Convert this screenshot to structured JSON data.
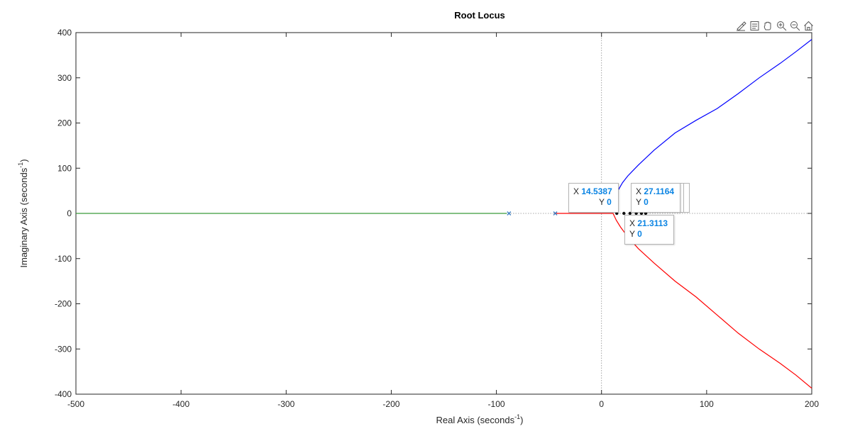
{
  "toolbar": {
    "icons": [
      "brush-icon",
      "datatip-icon",
      "pan-icon",
      "zoom-in-icon",
      "zoom-out-icon",
      "home-icon"
    ]
  },
  "datatips": [
    {
      "x_label": "X",
      "x_value": "14.5387",
      "y_label": "Y",
      "y_value": "0"
    },
    {
      "x_label": "X",
      "x_value": "27.1164",
      "y_label": "Y",
      "y_value": "0"
    },
    {
      "x_label": "X",
      "x_value": "21.3113",
      "y_label": "Y",
      "y_value": "0"
    }
  ],
  "chart_data": {
    "type": "line",
    "title": "Root Locus",
    "xlabel": "Real Axis (seconds",
    "xlabel_sup": "-1",
    "xlabel_close": ")",
    "ylabel": "Imaginary Axis (seconds",
    "ylabel_sup": "-1",
    "ylabel_close": ")",
    "xlim": [
      -500,
      200
    ],
    "ylim": [
      -400,
      400
    ],
    "xticks": [
      -500,
      -400,
      -300,
      -200,
      -100,
      0,
      100,
      200
    ],
    "yticks": [
      -400,
      -300,
      -200,
      -100,
      0,
      100,
      200,
      300,
      400
    ],
    "grid": false,
    "reference_lines": {
      "x0_dotted": true,
      "y0_dotted": true
    },
    "colors": {
      "blue": "#0000ff",
      "red": "#ff0000",
      "green": "#3a9a3a",
      "pole": "#3d7fc4",
      "axis": "#262626"
    },
    "series": [
      {
        "color": "#0000ff",
        "x": [
          14,
          16,
          20,
          25,
          35,
          50,
          70,
          90,
          110,
          130,
          150,
          170,
          185,
          200
        ],
        "y": [
          33,
          52,
          68,
          83,
          107,
          140,
          178,
          206,
          232,
          265,
          300,
          332,
          358,
          385
        ]
      },
      {
        "color": "#ff0000",
        "x": [
          -45,
          -30,
          -10,
          5,
          11,
          12,
          14,
          18,
          25,
          35,
          50,
          70,
          90,
          110,
          130,
          150,
          170,
          185,
          200
        ],
        "y": [
          0,
          0,
          0,
          0,
          0,
          -5,
          -15,
          -30,
          -52,
          -78,
          -110,
          -150,
          -185,
          -225,
          -265,
          -300,
          -332,
          -358,
          -387
        ]
      },
      {
        "color": "#3a9a3a",
        "x": [
          -500,
          -90
        ],
        "y": [
          0,
          0
        ]
      }
    ],
    "poles_x": [
      -88,
      -44
    ],
    "markers_x": [
      14.5387,
      21.3113,
      27.1164,
      33,
      38,
      42
    ]
  }
}
